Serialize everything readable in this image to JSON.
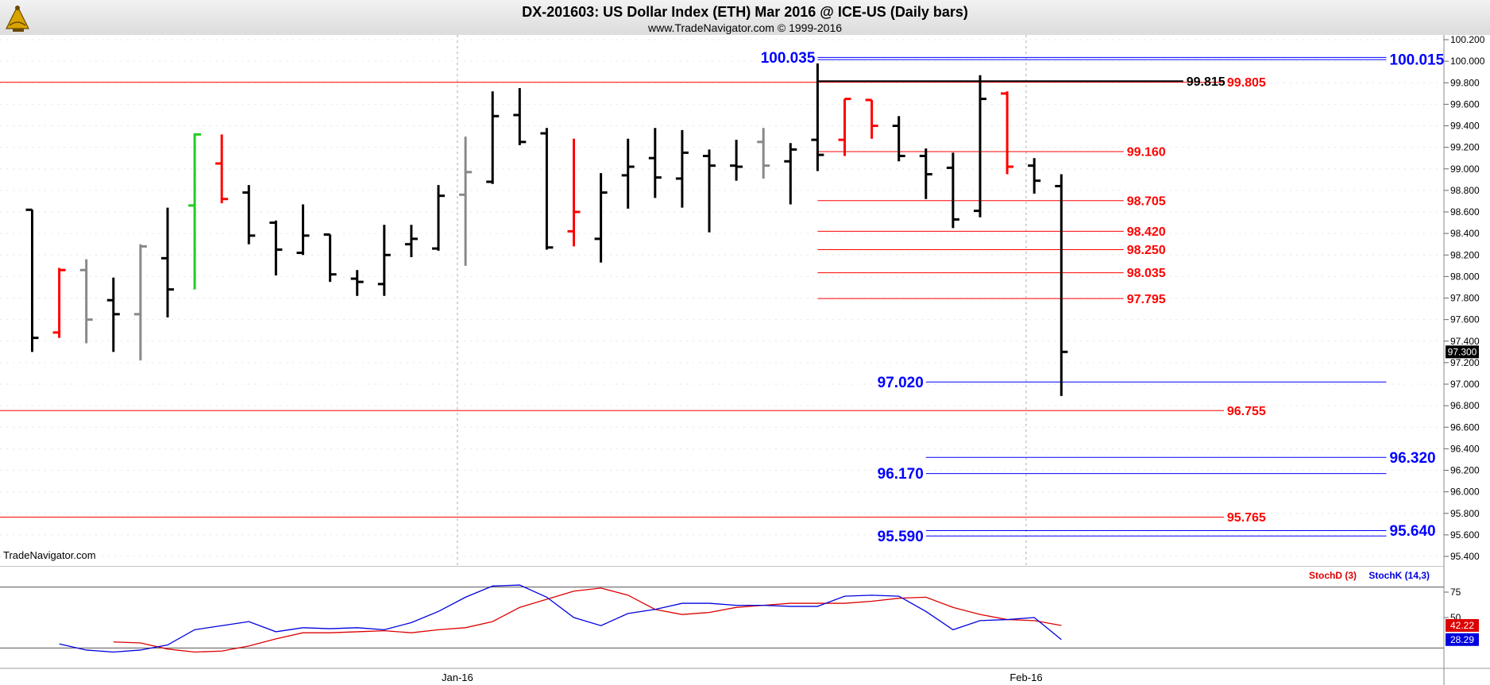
{
  "header": {
    "title": "DX-201603:  US Dollar Index (ETH) Mar 2016 @ ICE-US  (Daily bars)",
    "subtitle": "www.TradeNavigator.com © 1999-2016",
    "watermark": "TradeNavigator.com",
    "logo_icon": "sextant-icon"
  },
  "chart_data": [
    {
      "type": "ohlc",
      "title": "DX-201603:  US Dollar Index (ETH) Mar 2016 @ ICE-US  (Daily bars)",
      "ylim": [
        95.4,
        100.2
      ],
      "y_ticks": [
        95.4,
        95.6,
        95.8,
        96.0,
        96.2,
        96.4,
        96.6,
        96.8,
        97.0,
        97.2,
        97.4,
        97.6,
        97.8,
        98.0,
        98.2,
        98.4,
        98.6,
        98.8,
        99.0,
        99.2,
        99.4,
        99.6,
        99.8,
        100.0,
        100.2
      ],
      "x_labels": [
        {
          "label": "Jan-16",
          "bar": 16
        },
        {
          "label": "Feb-16",
          "bar": 37
        }
      ],
      "last_price": "97.300",
      "bars": [
        {
          "o": 98.62,
          "h": 98.62,
          "l": 97.3,
          "c": 97.43,
          "color": "black"
        },
        {
          "o": 97.48,
          "h": 98.08,
          "l": 97.43,
          "c": 98.06,
          "color": "red"
        },
        {
          "o": 98.06,
          "h": 98.16,
          "l": 97.38,
          "c": 97.6,
          "color": "gray"
        },
        {
          "o": 97.78,
          "h": 97.99,
          "l": 97.3,
          "c": 97.65,
          "color": "black"
        },
        {
          "o": 97.65,
          "h": 98.3,
          "l": 97.22,
          "c": 98.28,
          "color": "gray"
        },
        {
          "o": 98.17,
          "h": 98.64,
          "l": 97.62,
          "c": 97.88,
          "color": "black"
        },
        {
          "o": 98.66,
          "h": 99.33,
          "l": 97.88,
          "c": 99.32,
          "color": "green"
        },
        {
          "o": 99.05,
          "h": 99.32,
          "l": 98.68,
          "c": 98.72,
          "color": "red"
        },
        {
          "o": 98.78,
          "h": 98.85,
          "l": 98.3,
          "c": 98.38,
          "color": "black"
        },
        {
          "o": 98.5,
          "h": 98.52,
          "l": 98.01,
          "c": 98.25,
          "color": "black"
        },
        {
          "o": 98.22,
          "h": 98.67,
          "l": 98.2,
          "c": 98.38,
          "color": "black"
        },
        {
          "o": 98.39,
          "h": 98.39,
          "l": 97.95,
          "c": 98.02,
          "color": "black"
        },
        {
          "o": 97.98,
          "h": 98.06,
          "l": 97.82,
          "c": 97.95,
          "color": "black"
        },
        {
          "o": 97.93,
          "h": 98.48,
          "l": 97.82,
          "c": 98.2,
          "color": "black"
        },
        {
          "o": 98.3,
          "h": 98.48,
          "l": 98.18,
          "c": 98.35,
          "color": "black"
        },
        {
          "o": 98.26,
          "h": 98.85,
          "l": 98.24,
          "c": 98.75,
          "color": "black"
        },
        {
          "o": 98.76,
          "h": 99.3,
          "l": 98.1,
          "c": 98.97,
          "color": "gray"
        },
        {
          "o": 98.88,
          "h": 99.72,
          "l": 98.86,
          "c": 99.49,
          "color": "black"
        },
        {
          "o": 99.5,
          "h": 99.75,
          "l": 99.22,
          "c": 99.25,
          "color": "black"
        },
        {
          "o": 99.33,
          "h": 99.38,
          "l": 98.25,
          "c": 98.27,
          "color": "black"
        },
        {
          "o": 98.42,
          "h": 99.28,
          "l": 98.28,
          "c": 98.6,
          "color": "red"
        },
        {
          "o": 98.35,
          "h": 98.96,
          "l": 98.13,
          "c": 98.78,
          "color": "black"
        },
        {
          "o": 98.94,
          "h": 99.28,
          "l": 98.63,
          "c": 99.02,
          "color": "black"
        },
        {
          "o": 99.1,
          "h": 99.38,
          "l": 98.73,
          "c": 98.92,
          "color": "black"
        },
        {
          "o": 98.91,
          "h": 99.36,
          "l": 98.64,
          "c": 99.15,
          "color": "black"
        },
        {
          "o": 99.12,
          "h": 99.18,
          "l": 98.41,
          "c": 99.03,
          "color": "black"
        },
        {
          "o": 99.03,
          "h": 99.27,
          "l": 98.89,
          "c": 99.02,
          "color": "black"
        },
        {
          "o": 99.25,
          "h": 99.38,
          "l": 98.91,
          "c": 99.03,
          "color": "gray"
        },
        {
          "o": 99.07,
          "h": 99.24,
          "l": 98.67,
          "c": 99.18,
          "color": "black"
        },
        {
          "o": 99.27,
          "h": 99.98,
          "l": 98.98,
          "c": 99.13,
          "color": "black"
        },
        {
          "o": 99.27,
          "h": 99.65,
          "l": 99.12,
          "c": 99.65,
          "color": "red"
        },
        {
          "o": 99.64,
          "h": 99.64,
          "l": 99.28,
          "c": 99.4,
          "color": "red"
        },
        {
          "o": 99.4,
          "h": 99.49,
          "l": 99.07,
          "c": 99.12,
          "color": "black"
        },
        {
          "o": 99.12,
          "h": 99.19,
          "l": 98.72,
          "c": 98.95,
          "color": "black"
        },
        {
          "o": 99.01,
          "h": 99.15,
          "l": 98.45,
          "c": 98.53,
          "color": "black"
        },
        {
          "o": 98.61,
          "h": 99.87,
          "l": 98.55,
          "c": 99.65,
          "color": "black"
        },
        {
          "o": 99.7,
          "h": 99.72,
          "l": 98.95,
          "c": 99.02,
          "color": "red"
        },
        {
          "o": 99.03,
          "h": 99.1,
          "l": 98.77,
          "c": 98.89,
          "color": "black"
        },
        {
          "o": 98.84,
          "h": 98.95,
          "l": 96.89,
          "c": 97.3,
          "color": "black"
        }
      ],
      "levels": [
        {
          "value": 99.805,
          "label": "99.805",
          "color": "red",
          "from_bar": -1,
          "to_bar": 44,
          "label_side": "right"
        },
        {
          "value": 99.815,
          "label": "99.815",
          "color": "black",
          "from_bar": 29,
          "to_bar": 42.5,
          "label_side": "right"
        },
        {
          "value": 99.16,
          "label": "99.160",
          "color": "red",
          "from_bar": 29,
          "to_bar": 40.3,
          "label_side": "right"
        },
        {
          "value": 98.705,
          "label": "98.705",
          "color": "red",
          "from_bar": 29,
          "to_bar": 40.3,
          "label_side": "right"
        },
        {
          "value": 98.42,
          "label": "98.420",
          "color": "red",
          "from_bar": 29,
          "to_bar": 40.3,
          "label_side": "right"
        },
        {
          "value": 98.25,
          "label": "98.250",
          "color": "red",
          "from_bar": 29,
          "to_bar": 40.3,
          "label_side": "right"
        },
        {
          "value": 98.035,
          "label": "98.035",
          "color": "red",
          "from_bar": 29,
          "to_bar": 40.3,
          "label_side": "right"
        },
        {
          "value": 97.795,
          "label": "97.795",
          "color": "red",
          "from_bar": 29,
          "to_bar": 40.3,
          "label_side": "right"
        },
        {
          "value": 96.755,
          "label": "96.755",
          "color": "red",
          "from_bar": -1,
          "to_bar": 44,
          "label_side": "right"
        },
        {
          "value": 95.765,
          "label": "95.765",
          "color": "red",
          "from_bar": -1,
          "to_bar": 44,
          "label_side": "right"
        },
        {
          "value": 100.035,
          "label": "100.035",
          "color": "blue",
          "from_bar": 29,
          "to_bar": 50,
          "label_side": "left"
        },
        {
          "value": 100.015,
          "label": "100.015",
          "color": "blue",
          "from_bar": 29,
          "to_bar": 50,
          "label_side": "right"
        },
        {
          "value": 97.02,
          "label": "97.020",
          "color": "blue",
          "from_bar": 33,
          "to_bar": 50,
          "label_side": "left"
        },
        {
          "value": 96.32,
          "label": "96.320",
          "color": "blue",
          "from_bar": 33,
          "to_bar": 50,
          "label_side": "right"
        },
        {
          "value": 96.17,
          "label": "96.170",
          "color": "blue",
          "from_bar": 33,
          "to_bar": 50,
          "label_side": "left"
        },
        {
          "value": 95.64,
          "label": "95.640",
          "color": "blue",
          "from_bar": 33,
          "to_bar": 50,
          "label_side": "right"
        },
        {
          "value": 95.59,
          "label": "95.590",
          "color": "blue",
          "from_bar": 33,
          "to_bar": 50,
          "label_side": "left"
        }
      ]
    },
    {
      "type": "line",
      "title": "Stochastic",
      "ylim": [
        0,
        100
      ],
      "y_ticks": [
        50,
        75
      ],
      "series": [
        {
          "name": "StochD (3)",
          "color": "#dd0000",
          "last_label": "42.22",
          "values": [
            26,
            25,
            19,
            16,
            17,
            22,
            29,
            35,
            35,
            36,
            37,
            35,
            38,
            40,
            46,
            60,
            68,
            76,
            79,
            72,
            58,
            53,
            55,
            60,
            62,
            64,
            64,
            64,
            66,
            69,
            70,
            60,
            53,
            48,
            47,
            42.22
          ]
        },
        {
          "name": "StochK (14,3)",
          "color": "#0000dd",
          "last_label": "28.29",
          "values": [
            24,
            18,
            16,
            18,
            23,
            38,
            42,
            46,
            36,
            40,
            39,
            40,
            38,
            45,
            56,
            70,
            81,
            82,
            70,
            50,
            42,
            54,
            58,
            64,
            64,
            62,
            62,
            61,
            61,
            71,
            72,
            71,
            56,
            38,
            47,
            48,
            50,
            28.29
          ]
        }
      ]
    }
  ]
}
